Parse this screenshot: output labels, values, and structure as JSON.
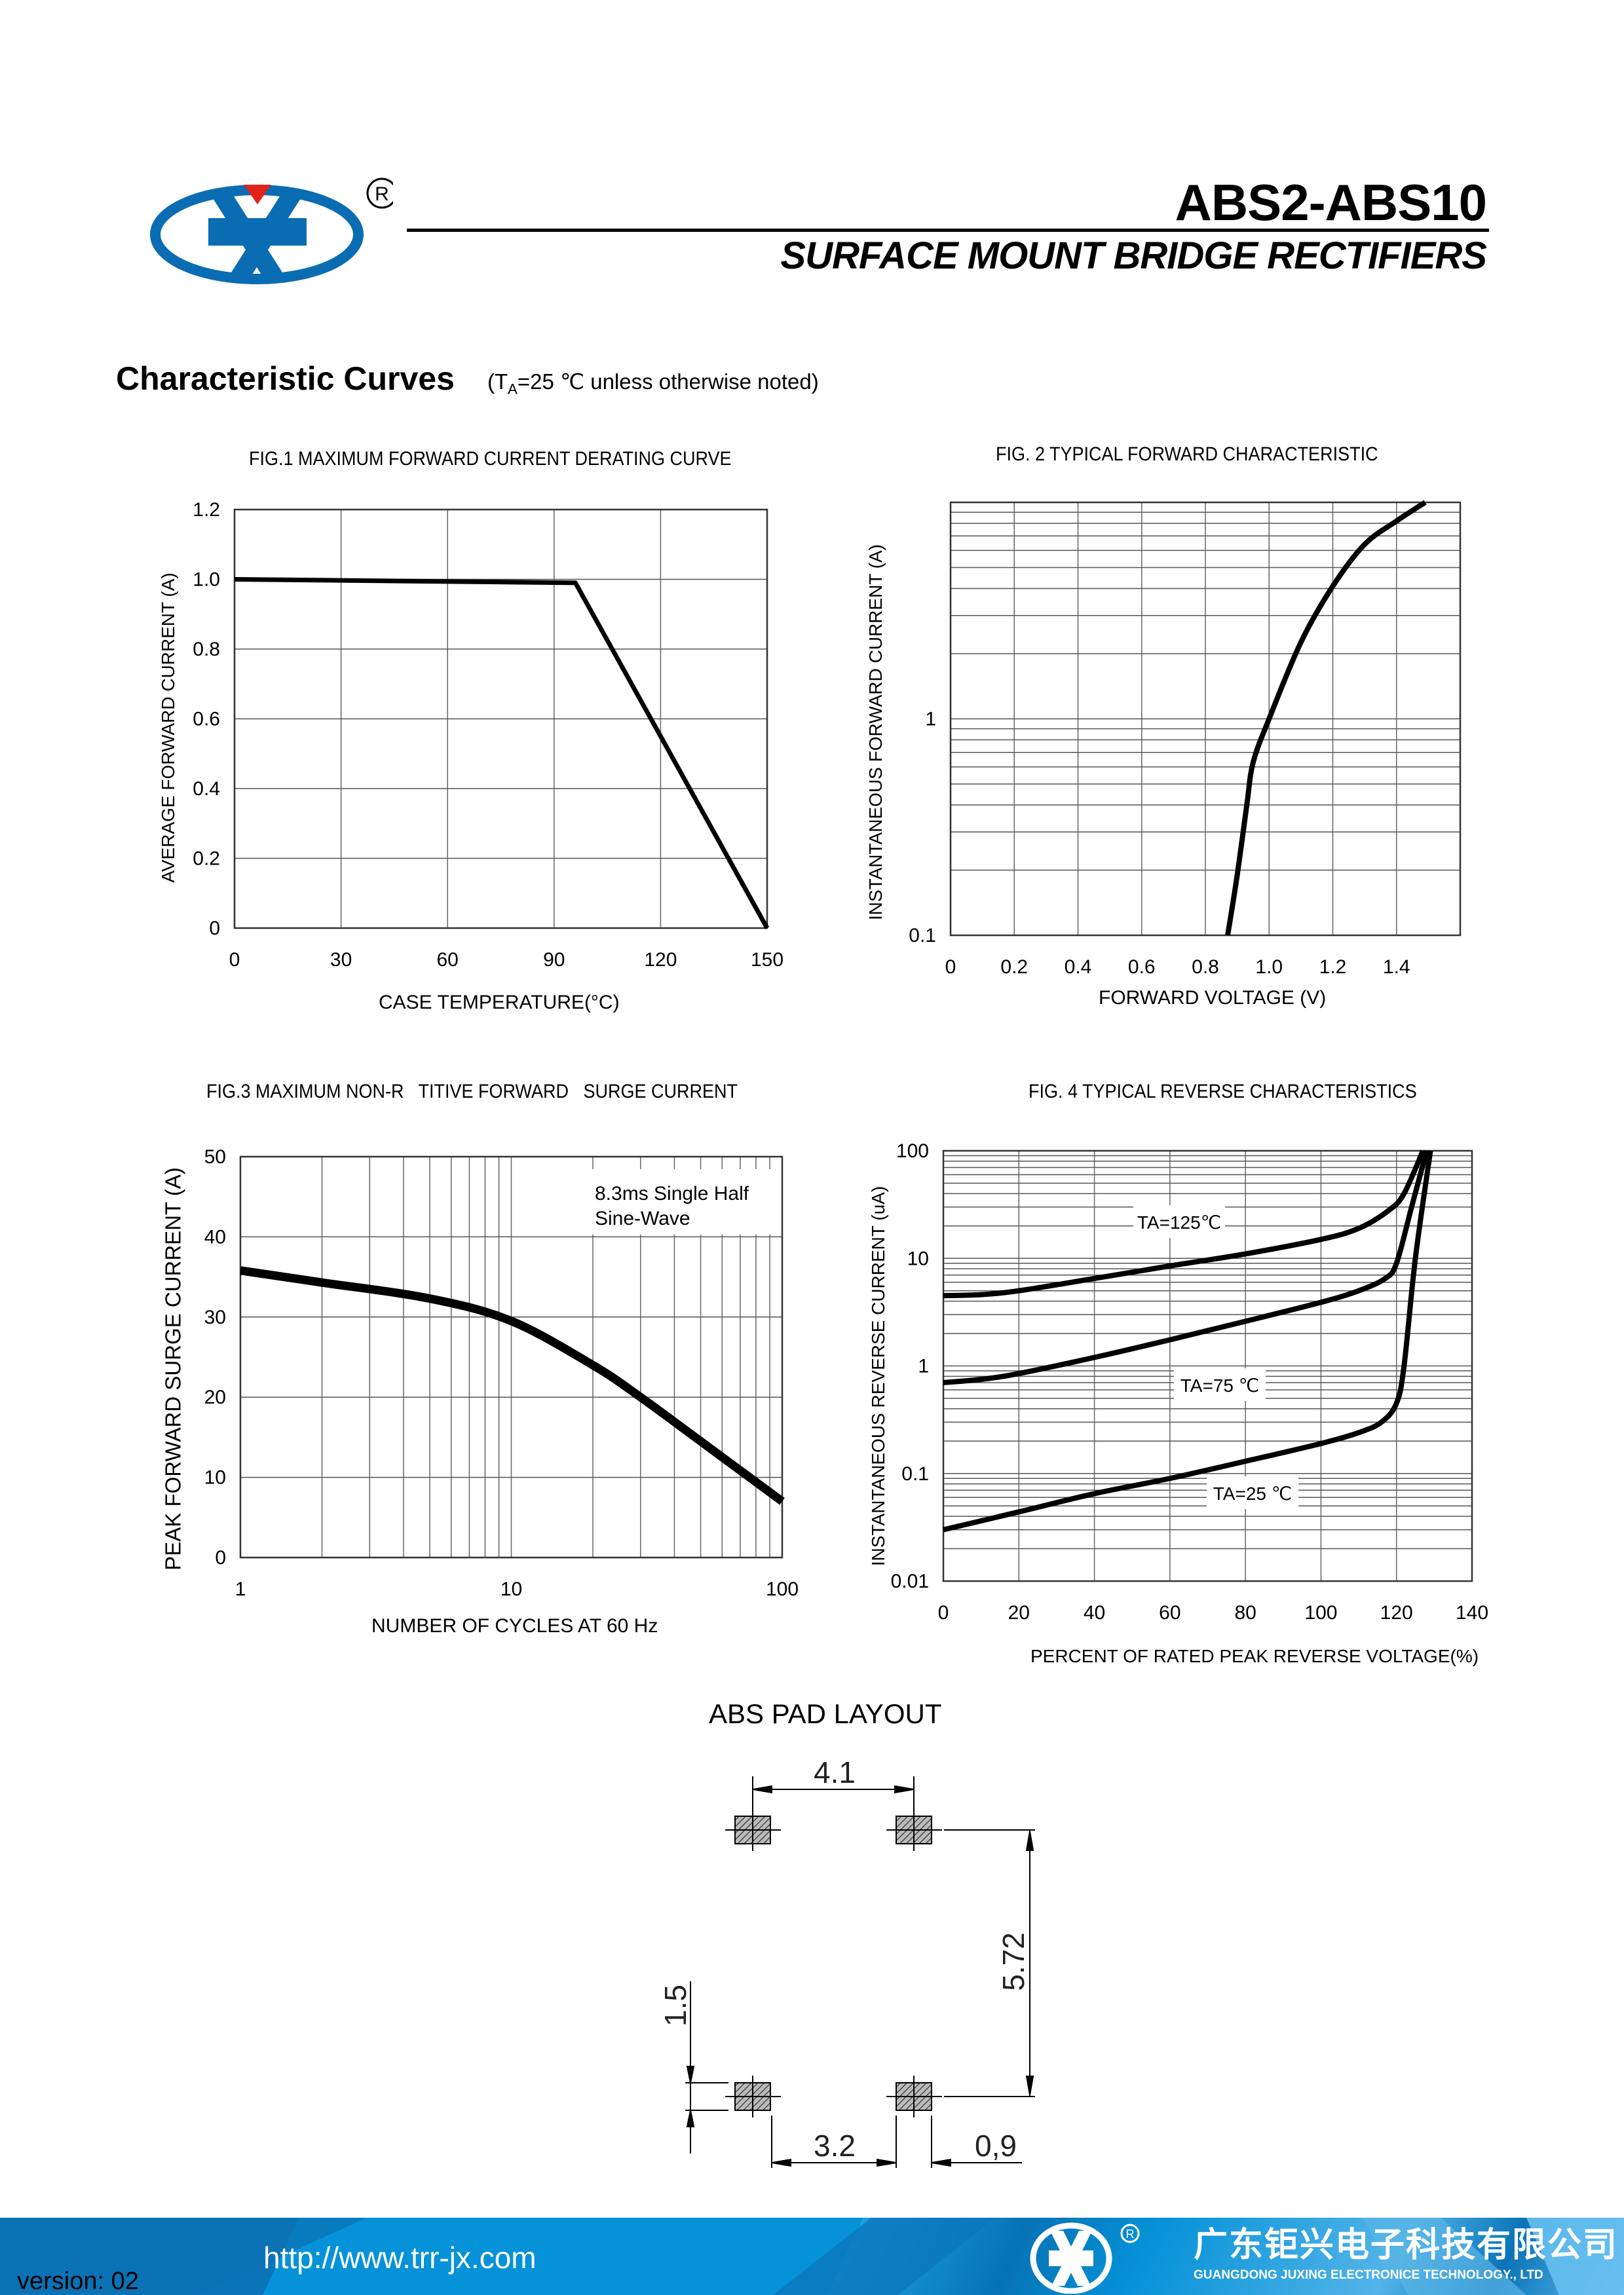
{
  "header": {
    "title": "ABS2-ABS10",
    "subtitle": "SURFACE MOUNT BRIDGE RECTIFIERS",
    "logo_mark": "registered-trademark",
    "registered_symbol": "R",
    "brand_blue": "#0a6db3",
    "brand_red": "#e2231a"
  },
  "section": {
    "title": "Characteristic Curves",
    "note_prefix": "(T",
    "note_sub": "A",
    "note_rest": "=25 ℃ unless otherwise noted)"
  },
  "chart_data": [
    {
      "type": "line",
      "title": "FIG.1 MAXIMUM FORWARD CURRENT DERATING  CURVE",
      "xlabel": "CASE TEMPERATURE(°C)",
      "ylabel": "AVERAGE FORWARD CURRENT (A)",
      "xscale": "linear",
      "yscale": "linear",
      "xlim": [
        0,
        150
      ],
      "ylim": [
        0,
        1.2
      ],
      "xticks": [
        0,
        30,
        60,
        90,
        120,
        150
      ],
      "xtick_labels": [
        "0",
        "30",
        "60",
        "90",
        "120",
        "150"
      ],
      "yticks": [
        0,
        0.2,
        0.4,
        0.6,
        0.8,
        1.0,
        1.2
      ],
      "ytick_labels": [
        "0",
        "0.2",
        "0.4",
        "0.6",
        "0.8",
        "1.0",
        "1.2"
      ],
      "grid": true,
      "series": [
        {
          "name": "derating",
          "smooth": false,
          "x": [
            0,
            96,
            150
          ],
          "y": [
            1.0,
            0.99,
            0
          ]
        }
      ]
    },
    {
      "type": "line",
      "title": "FIG. 2 TYPICAL FORWARD CHARACTERISTIC",
      "xlabel": "FORWARD VOLTAGE (V)",
      "ylabel": "INSTANTANEOUS FORWARD CURRENT (A)",
      "xscale": "linear",
      "yscale": "log",
      "xlim": [
        0,
        1.6
      ],
      "ylim": [
        0.1,
        10
      ],
      "xticks": [
        0,
        0.2,
        0.4,
        0.6,
        0.8,
        1.0,
        1.2,
        1.4
      ],
      "xtick_labels": [
        "0",
        "0.2",
        "0.4",
        "0.6",
        "0.8",
        "1.0",
        "1.2",
        "1.4"
      ],
      "yticks": [
        0.1,
        1
      ],
      "ytick_labels": [
        "0.1",
        "1"
      ],
      "grid": true,
      "series": [
        {
          "name": "forward",
          "smooth": true,
          "x": [
            0.87,
            0.9,
            0.93,
            0.95,
            1.0,
            1.1,
            1.2,
            1.3,
            1.4,
            1.49
          ],
          "y": [
            0.1,
            0.19,
            0.4,
            0.63,
            1.0,
            2.26,
            4.1,
            6.4,
            8.2,
            10
          ]
        }
      ]
    },
    {
      "type": "line",
      "title": "FIG.3 MAXIMUM NON-R   TITIVE FORWARD   SURGE CURRENT",
      "xlabel": "NUMBER OF CYCLES AT 60 Hz",
      "ylabel": "PEAK FORWARD SURGE CURRENT (A)",
      "xscale": "log",
      "yscale": "linear",
      "xlim": [
        1,
        100
      ],
      "ylim": [
        0,
        50
      ],
      "xticks": [
        1,
        10,
        100
      ],
      "xtick_labels": [
        "1",
        "10",
        "100"
      ],
      "yticks": [
        0,
        10,
        20,
        30,
        40,
        50
      ],
      "ytick_labels": [
        "0",
        "10",
        "20",
        "30",
        "40",
        "50"
      ],
      "grid": true,
      "annotation": [
        "8.3ms Single Half",
        "Sine-Wave"
      ],
      "series": [
        {
          "name": "surge",
          "smooth": true,
          "x": [
            1,
            2,
            5,
            10,
            20,
            30,
            50,
            100
          ],
          "y": [
            35.8,
            34.3,
            32.3,
            29.5,
            24,
            20,
            14.5,
            7
          ]
        }
      ]
    },
    {
      "type": "line",
      "title": "FIG. 4 TYPICAL REVERSE CHARACTERISTICS",
      "xlabel": "PERCENT OF RATED PEAK REVERSE VOLTAGE(%)",
      "ylabel": "INSTANTANEOUS REVERSE CURRENT (uA)",
      "xscale": "linear",
      "yscale": "log",
      "xlim": [
        0,
        140
      ],
      "ylim": [
        0.01,
        100
      ],
      "xticks": [
        0,
        20,
        40,
        60,
        80,
        100,
        120,
        140
      ],
      "xtick_labels": [
        "0",
        "20",
        "40",
        "60",
        "80",
        "100",
        "120",
        "140"
      ],
      "yticks": [
        0.01,
        0.1,
        1,
        10,
        100
      ],
      "ytick_labels": [
        "0.01",
        "0.1",
        "1",
        "10",
        "100"
      ],
      "grid": true,
      "series": [
        {
          "name": "TA=125℃",
          "label": "TA=125℃",
          "smooth": true,
          "x": [
            0,
            10,
            20,
            40,
            60,
            80,
            100,
            110,
            118,
            122,
            127
          ],
          "y": [
            4.5,
            4.6,
            5,
            6.5,
            8.5,
            11,
            15,
            19,
            28,
            40,
            100
          ]
        },
        {
          "name": "TA=75℃",
          "label": "TA=75 ℃",
          "smooth": true,
          "x": [
            0,
            10,
            20,
            40,
            60,
            80,
            100,
            110,
            117,
            120,
            124,
            128
          ],
          "y": [
            0.7,
            0.75,
            0.85,
            1.2,
            1.75,
            2.6,
            3.9,
            5,
            6.5,
            9,
            30,
            100
          ]
        },
        {
          "name": "TA=25℃",
          "label": "TA=25 ℃",
          "smooth": true,
          "x": [
            0,
            20,
            40,
            60,
            80,
            100,
            110,
            116,
            120,
            122,
            125,
            129
          ],
          "y": [
            0.03,
            0.044,
            0.065,
            0.09,
            0.13,
            0.19,
            0.24,
            0.3,
            0.45,
            1,
            10,
            100
          ]
        }
      ]
    }
  ],
  "pad_layout": {
    "title": "ABS PAD LAYOUT",
    "dim_pitch_x": "4.1",
    "dim_pitch_y": "5.72",
    "dim_pad_height": "1.5",
    "dim_gap": "3.2",
    "dim_pad_width": "0,9"
  },
  "footer": {
    "url": "http://www.trr-jx.com",
    "version": "version: 02",
    "company_cn": "广东钜兴电子科技有限公司",
    "company_en": "GUANGDONG JUXING ELECTRONICE TECHNOLOGY., LTD",
    "registered_symbol": "R",
    "band_color": "#0592d8"
  }
}
